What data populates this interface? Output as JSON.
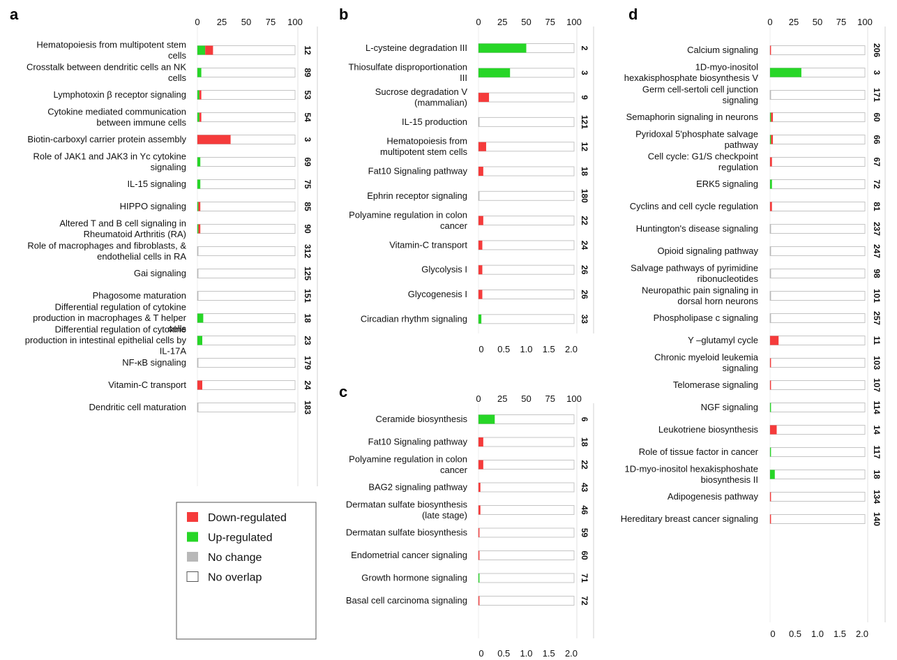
{
  "chart_data": [
    {
      "type": "bar",
      "panel": "a",
      "top_axis": {
        "ticks": [
          "0",
          "25",
          "50",
          "75",
          "100"
        ],
        "range": [
          0,
          100
        ]
      },
      "bottom_axis": {
        "ticks": [
          "0",
          "0.5",
          "1.0",
          "1.5",
          "2.0"
        ],
        "range": [
          0,
          2.0
        ]
      },
      "rows": [
        {
          "label": [
            "Hematopoiesis from multipotent stem",
            "cells"
          ],
          "count": "12",
          "up": 8,
          "down": 8,
          "nochange": 0
        },
        {
          "label": [
            "Crosstalk between dendritic cells an NK",
            "cells"
          ],
          "count": "89",
          "up": 4,
          "down": 0,
          "nochange": 0
        },
        {
          "label": [
            "Lymphotoxin β receptor signaling"
          ],
          "count": "53",
          "up": 2,
          "down": 2,
          "nochange": 0
        },
        {
          "label": [
            "Cytokine mediated communication",
            "between immune cells"
          ],
          "count": "54",
          "up": 2,
          "down": 2,
          "nochange": 0
        },
        {
          "label": [
            "Biotin-carboxyl carrier protein assembly"
          ],
          "count": "3",
          "up": 0,
          "down": 34,
          "nochange": 0
        },
        {
          "label": [
            "Role of JAK1 and JAK3 in Yc cytokine",
            "signaling"
          ],
          "count": "69",
          "up": 3,
          "down": 0,
          "nochange": 0
        },
        {
          "label": [
            "IL-15 signaling"
          ],
          "count": "75",
          "up": 3,
          "down": 0,
          "nochange": 0
        },
        {
          "label": [
            "HIPPO signaling"
          ],
          "count": "85",
          "up": 1,
          "down": 2,
          "nochange": 0
        },
        {
          "label": [
            "Altered T and B cell signaling in",
            "Rheumatoid Arthritis (RA)"
          ],
          "count": "90",
          "up": 1,
          "down": 2,
          "nochange": 0
        },
        {
          "label": [
            "Role of macrophages and fibroblasts, &",
            "endothelial cells in RA"
          ],
          "count": "312",
          "up": 0,
          "down": 0,
          "nochange": 1
        },
        {
          "label": [
            "Gai signaling"
          ],
          "count": "125",
          "up": 0,
          "down": 0,
          "nochange": 1
        },
        {
          "label": [
            "Phagosome maturation"
          ],
          "count": "151",
          "up": 0,
          "down": 0,
          "nochange": 1
        },
        {
          "label": [
            "Differential regulation of cytokine",
            "production in macrophages & T helper",
            "cells"
          ],
          "count": "18",
          "up": 6,
          "down": 0,
          "nochange": 0
        },
        {
          "label": [
            "Differential regulation of cytokine",
            "production in intestinal epithelial cells by",
            "IL-17A"
          ],
          "count": "23",
          "up": 5,
          "down": 0,
          "nochange": 0
        },
        {
          "label": [
            "NF-κB signaling"
          ],
          "count": "179",
          "up": 0,
          "down": 0,
          "nochange": 1
        },
        {
          "label": [
            "Vitamin-C transport"
          ],
          "count": "24",
          "up": 0,
          "down": 5,
          "nochange": 0
        },
        {
          "label": [
            "Dendritic cell maturation"
          ],
          "count": "183",
          "up": 0,
          "down": 0,
          "nochange": 1
        }
      ]
    },
    {
      "type": "bar",
      "panel": "b",
      "top_axis": {
        "ticks": [
          "0",
          "25",
          "50",
          "75",
          "100"
        ],
        "range": [
          0,
          100
        ]
      },
      "bottom_axis": {
        "ticks": [
          "0",
          "0.5",
          "1.0",
          "1.5",
          "2.0"
        ],
        "range": [
          0,
          2.0
        ]
      },
      "rows": [
        {
          "label": [
            "L-cysteine degradation III"
          ],
          "count": "2",
          "up": 50,
          "down": 0,
          "nochange": 0
        },
        {
          "label": [
            "Thiosulfate disproportionation",
            "III"
          ],
          "count": "3",
          "up": 33,
          "down": 0,
          "nochange": 0
        },
        {
          "label": [
            "Sucrose degradation V",
            "(mammalian)"
          ],
          "count": "9",
          "up": 0,
          "down": 11,
          "nochange": 0
        },
        {
          "label": [
            "IL-15 production"
          ],
          "count": "121",
          "up": 0,
          "down": 0,
          "nochange": 1
        },
        {
          "label": [
            "Hematopoiesis from",
            "multipotent stem cells"
          ],
          "count": "12",
          "up": 0,
          "down": 8,
          "nochange": 0
        },
        {
          "label": [
            "Fat10 Signaling pathway"
          ],
          "count": "18",
          "up": 0,
          "down": 5,
          "nochange": 0
        },
        {
          "label": [
            "Ephrin receptor signaling"
          ],
          "count": "180",
          "up": 0,
          "down": 0,
          "nochange": 1
        },
        {
          "label": [
            "Polyamine regulation in colon",
            "cancer"
          ],
          "count": "22",
          "up": 0,
          "down": 5,
          "nochange": 0
        },
        {
          "label": [
            "Vitamin-C transport"
          ],
          "count": "24",
          "up": 0,
          "down": 4,
          "nochange": 0
        },
        {
          "label": [
            "Glycolysis I"
          ],
          "count": "26",
          "up": 0,
          "down": 4,
          "nochange": 0
        },
        {
          "label": [
            "Glycogenesis I"
          ],
          "count": "26",
          "up": 0,
          "down": 4,
          "nochange": 0
        },
        {
          "label": [
            "Circadian rhythm signaling"
          ],
          "count": "33",
          "up": 3,
          "down": 0,
          "nochange": 0
        }
      ]
    },
    {
      "type": "bar",
      "panel": "c",
      "top_axis": {
        "ticks": [
          "0",
          "25",
          "50",
          "75",
          "100"
        ],
        "range": [
          0,
          100
        ]
      },
      "bottom_axis": {
        "ticks": [
          "0",
          "0.5",
          "1.0",
          "1.5",
          "2.0"
        ],
        "range": [
          0,
          2.0
        ]
      },
      "rows": [
        {
          "label": [
            "Ceramide biosynthesis"
          ],
          "count": "6",
          "up": 17,
          "down": 0,
          "nochange": 0
        },
        {
          "label": [
            "Fat10 Signaling pathway"
          ],
          "count": "18",
          "up": 0,
          "down": 5,
          "nochange": 0
        },
        {
          "label": [
            "Polyamine regulation in colon",
            "cancer"
          ],
          "count": "22",
          "up": 0,
          "down": 5,
          "nochange": 0
        },
        {
          "label": [
            "BAG2 signaling pathway"
          ],
          "count": "43",
          "up": 0,
          "down": 2,
          "nochange": 0
        },
        {
          "label": [
            "Dermatan sulfate biosynthesis",
            "(late stage)"
          ],
          "count": "46",
          "up": 0,
          "down": 2,
          "nochange": 0
        },
        {
          "label": [
            "Dermatan sulfate biosynthesis"
          ],
          "count": "59",
          "up": 0,
          "down": 1,
          "nochange": 0
        },
        {
          "label": [
            "Endometrial cancer signaling"
          ],
          "count": "60",
          "up": 0,
          "down": 1,
          "nochange": 0
        },
        {
          "label": [
            "Growth hormone signaling"
          ],
          "count": "71",
          "up": 1,
          "down": 0,
          "nochange": 0
        },
        {
          "label": [
            "Basal cell carcinoma signaling"
          ],
          "count": "72",
          "up": 0,
          "down": 1,
          "nochange": 0
        }
      ]
    },
    {
      "type": "bar",
      "panel": "d",
      "top_axis": {
        "ticks": [
          "0",
          "25",
          "50",
          "75",
          "100"
        ],
        "range": [
          0,
          100
        ]
      },
      "bottom_axis": {
        "ticks": [
          "0",
          "0.5",
          "1.0",
          "1.5",
          "2.0"
        ],
        "range": [
          0,
          2.0
        ]
      },
      "rows": [
        {
          "label": [
            "Calcium signaling"
          ],
          "count": "206",
          "up": 0,
          "down": 1,
          "nochange": 0
        },
        {
          "label": [
            "1D-myo-inositol",
            "hexakisphosphate biosynthesis V"
          ],
          "count": "3",
          "up": 33,
          "down": 0,
          "nochange": 0
        },
        {
          "label": [
            "Germ cell-sertoli cell junction",
            "signaling"
          ],
          "count": "171",
          "up": 0,
          "down": 0,
          "nochange": 1
        },
        {
          "label": [
            "Semaphorin signaling in neurons"
          ],
          "count": "60",
          "up": 1,
          "down": 2,
          "nochange": 0
        },
        {
          "label": [
            "Pyridoxal 5'phosphate salvage",
            "pathway"
          ],
          "count": "66",
          "up": 1,
          "down": 2,
          "nochange": 0
        },
        {
          "label": [
            "Cell cycle: G1/S checkpoint",
            "regulation"
          ],
          "count": "67",
          "up": 0,
          "down": 2,
          "nochange": 0
        },
        {
          "label": [
            "ERK5 signaling"
          ],
          "count": "72",
          "up": 2,
          "down": 0,
          "nochange": 0
        },
        {
          "label": [
            "Cyclins and cell cycle regulation"
          ],
          "count": "81",
          "up": 0,
          "down": 2,
          "nochange": 0
        },
        {
          "label": [
            "Huntington's disease signaling"
          ],
          "count": "237",
          "up": 0,
          "down": 0,
          "nochange": 1
        },
        {
          "label": [
            "Opioid signaling pathway"
          ],
          "count": "247",
          "up": 0,
          "down": 0,
          "nochange": 1
        },
        {
          "label": [
            "Salvage pathways of pyrimidine",
            "ribonucleotides"
          ],
          "count": "98",
          "up": 0,
          "down": 0,
          "nochange": 1
        },
        {
          "label": [
            "Neuropathic pain signaling in",
            "dorsal horn neurons"
          ],
          "count": "101",
          "up": 0,
          "down": 0,
          "nochange": 1
        },
        {
          "label": [
            "Phospholipase c signaling"
          ],
          "count": "257",
          "up": 0,
          "down": 0,
          "nochange": 1
        },
        {
          "label": [
            "Y –glutamyl cycle"
          ],
          "count": "11",
          "up": 0,
          "down": 9,
          "nochange": 0
        },
        {
          "label": [
            "Chronic myeloid leukemia",
            "signaling"
          ],
          "count": "103",
          "up": 0,
          "down": 1,
          "nochange": 0
        },
        {
          "label": [
            "Telomerase signaling"
          ],
          "count": "107",
          "up": 0,
          "down": 1,
          "nochange": 0
        },
        {
          "label": [
            "NGF signaling"
          ],
          "count": "114",
          "up": 1,
          "down": 0,
          "nochange": 0
        },
        {
          "label": [
            "Leukotriene biosynthesis"
          ],
          "count": "14",
          "up": 0,
          "down": 7,
          "nochange": 0
        },
        {
          "label": [
            "Role of tissue factor in cancer"
          ],
          "count": "117",
          "up": 1,
          "down": 0,
          "nochange": 0
        },
        {
          "label": [
            "1D-myo-inositol hexakisphoshate",
            "biosynthesis II"
          ],
          "count": "18",
          "up": 5,
          "down": 0,
          "nochange": 0
        },
        {
          "label": [
            "Adipogenesis pathway"
          ],
          "count": "134",
          "up": 0,
          "down": 1,
          "nochange": 0
        },
        {
          "label": [
            "Hereditary breast cancer signaling"
          ],
          "count": "140",
          "up": 0,
          "down": 1,
          "nochange": 0
        }
      ]
    }
  ],
  "legend": {
    "items": [
      {
        "key": "down",
        "label": "Down-regulated",
        "color": "#f53b3b"
      },
      {
        "key": "up",
        "label": "Up-regulated",
        "color": "#27d627"
      },
      {
        "key": "nochange",
        "label": "No change",
        "color": "#b8b8b8"
      },
      {
        "key": "nooverlap",
        "label": "No overlap",
        "color": "#ffffff"
      }
    ]
  }
}
